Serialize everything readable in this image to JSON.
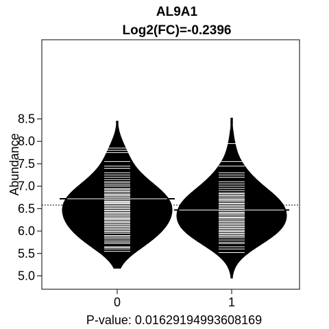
{
  "chart_data": {
    "type": "beanplot",
    "title": "AL9A1",
    "subtitle": "Log2(FC)=-0.2396",
    "xlabel": "P-value: 0.01629194993608169",
    "ylabel": "Abundance",
    "categories": [
      "0",
      "1"
    ],
    "yticks": [
      "5.0",
      "5.5",
      "6.0",
      "6.5",
      "7.0",
      "7.5",
      "8.0",
      "8.5"
    ],
    "ylim": [
      4.9,
      8.65
    ],
    "overall_mean": 6.58,
    "groups": [
      {
        "name": "0",
        "mean": 6.72,
        "density_range": [
          5.17,
          8.45
        ],
        "observations": [
          5.55,
          5.6,
          5.63,
          5.65,
          5.72,
          5.75,
          5.78,
          5.82,
          5.85,
          5.88,
          5.9,
          5.95,
          5.98,
          6.0,
          6.03,
          6.05,
          6.08,
          6.1,
          6.13,
          6.15,
          6.18,
          6.2,
          6.22,
          6.25,
          6.27,
          6.29,
          6.3,
          6.33,
          6.35,
          6.38,
          6.4,
          6.42,
          6.45,
          6.47,
          6.5,
          6.52,
          6.55,
          6.57,
          6.6,
          6.62,
          6.63,
          6.65,
          6.67,
          6.7,
          6.71,
          6.73,
          6.75,
          6.78,
          6.8,
          6.82,
          6.85,
          6.88,
          6.9,
          6.93,
          6.95,
          7.0,
          7.03,
          7.07,
          7.1,
          7.15,
          7.2,
          7.25,
          7.3,
          7.4,
          7.45,
          7.55,
          7.75,
          7.8,
          7.85
        ]
      },
      {
        "name": "1",
        "mean": 6.47,
        "density_range": [
          4.95,
          8.52
        ],
        "observations": [
          5.52,
          5.6,
          5.65,
          5.72,
          5.75,
          5.8,
          5.85,
          5.88,
          5.9,
          5.93,
          5.95,
          5.98,
          6.0,
          6.02,
          6.05,
          6.07,
          6.1,
          6.12,
          6.15,
          6.17,
          6.2,
          6.22,
          6.25,
          6.28,
          6.3,
          6.32,
          6.35,
          6.38,
          6.4,
          6.42,
          6.45,
          6.47,
          6.5,
          6.52,
          6.55,
          6.57,
          6.6,
          6.62,
          6.65,
          6.68,
          6.7,
          6.72,
          6.75,
          6.78,
          6.8,
          6.83,
          6.85,
          6.9,
          6.95,
          7.0,
          7.05,
          7.1,
          7.2,
          7.25,
          7.3,
          7.45,
          7.55,
          7.95
        ]
      }
    ]
  }
}
